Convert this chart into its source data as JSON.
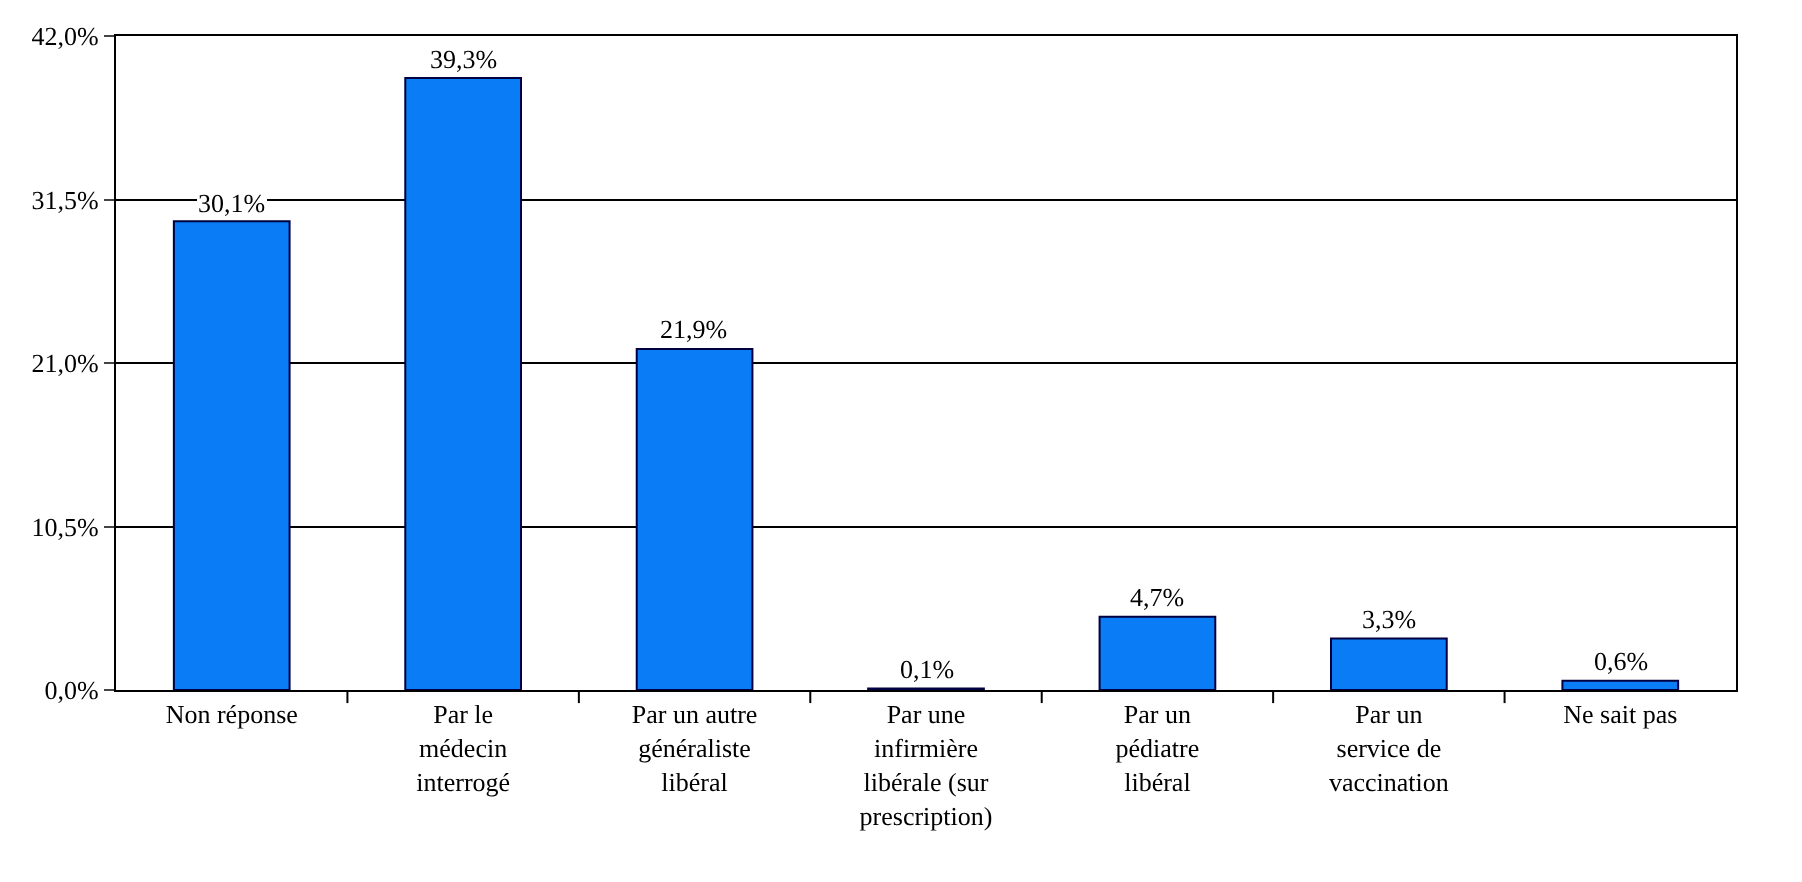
{
  "chart_data": {
    "type": "bar",
    "categories": [
      "Non réponse",
      "Par le\nmédecin\ninterrogé",
      "Par un autre\ngénéraliste\nlibéral",
      "Par une\ninfirmière\nlibérale (sur\nprescription)",
      "Par un\npédiatre\nlibéral",
      "Par un\nservice de\nvaccination",
      "Ne sait pas"
    ],
    "values": [
      30.1,
      39.3,
      21.9,
      0.1,
      4.7,
      3.3,
      0.6
    ],
    "value_labels": [
      "30,1%",
      "39,3%",
      "21,9%",
      "0,1%",
      "4,7%",
      "3,3%",
      "0,6%"
    ],
    "color": "#0a7cf5",
    "ylim": [
      0,
      42
    ],
    "yticks": [
      {
        "value": 0,
        "label": "0,0%"
      },
      {
        "value": 10.5,
        "label": "10,5%"
      },
      {
        "value": 21,
        "label": "21,0%"
      },
      {
        "value": 31.5,
        "label": "31,5%"
      },
      {
        "value": 42,
        "label": "42,0%"
      }
    ],
    "grid": "y"
  }
}
